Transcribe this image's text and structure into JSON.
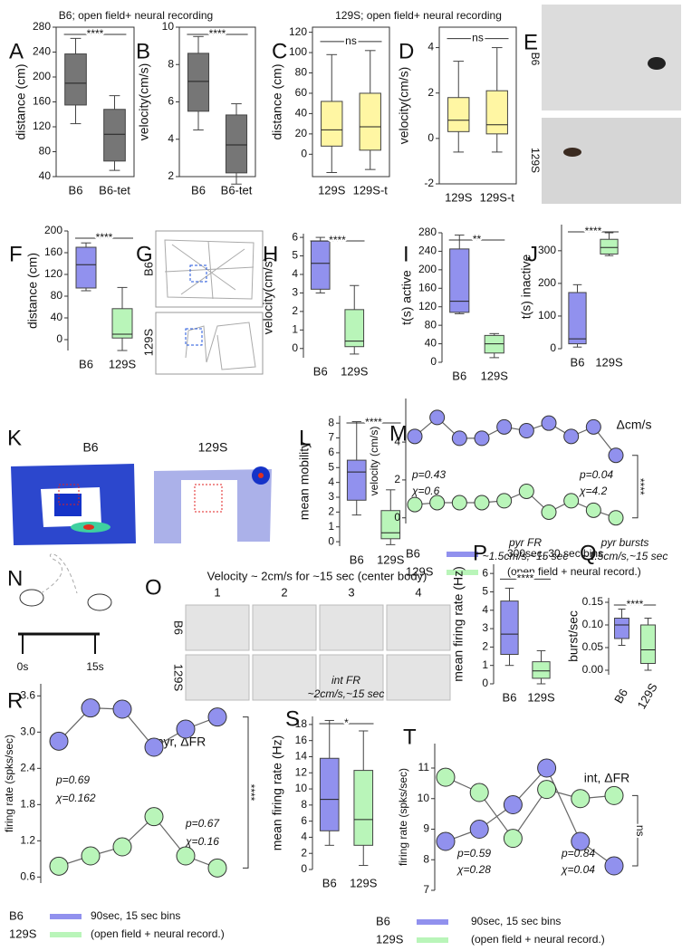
{
  "figure": {
    "headers": [
      "B6; open field+ neural recording",
      "129S; open field+ neural recording"
    ]
  },
  "panels": [
    {
      "panel": "E",
      "labels": [
        "B6",
        "129S"
      ]
    },
    {
      "panel": "G",
      "labels": [
        "B6",
        "129S"
      ]
    },
    {
      "panel": "K",
      "labels": [
        "B6",
        "129S"
      ]
    },
    {
      "panel": "N",
      "labels": [
        "0s",
        "15s"
      ]
    },
    {
      "panel": "O",
      "title": "Velocity ~ 2cm/s for ~15 sec (center body)",
      "columns": [
        "1",
        "2",
        "3",
        "4"
      ],
      "rows": [
        "B6",
        "129S"
      ]
    }
  ],
  "chart_data": [
    {
      "type": "box",
      "panel": "A",
      "ylabel": "distance (cm)",
      "categories": [
        "B6",
        "B6-tet"
      ],
      "colors": [
        "#767676",
        "#767676"
      ],
      "ylim": [
        40,
        280
      ],
      "yticks": [
        40,
        80,
        120,
        160,
        200,
        240,
        280
      ],
      "significance": "****",
      "boxes": [
        {
          "whislo": 125,
          "q1": 155,
          "med": 190,
          "q3": 237,
          "whishi": 262
        },
        {
          "whislo": 50,
          "q1": 65,
          "med": 108,
          "q3": 148,
          "whishi": 170
        }
      ]
    },
    {
      "type": "box",
      "panel": "B",
      "ylabel": "velocity(cm/s)",
      "categories": [
        "B6",
        "B6-tet"
      ],
      "colors": [
        "#767676",
        "#767676"
      ],
      "ylim": [
        2,
        10
      ],
      "yticks": [
        2,
        4,
        6,
        8,
        10
      ],
      "significance": "****",
      "boxes": [
        {
          "whislo": 4.5,
          "q1": 5.5,
          "med": 7.1,
          "q3": 8.6,
          "whishi": 9.5
        },
        {
          "whislo": 1.6,
          "q1": 2.2,
          "med": 3.7,
          "q3": 5.3,
          "whishi": 5.9
        }
      ]
    },
    {
      "type": "box",
      "panel": "C",
      "ylabel": "distance (cm)",
      "categories": [
        "129S",
        "129S-t"
      ],
      "colors": [
        "#fff6a3",
        "#fff6a3"
      ],
      "ylim": [
        -22,
        125
      ],
      "yticks": [
        0,
        20,
        40,
        60,
        80,
        100,
        120
      ],
      "significance": "ns",
      "boxes": [
        {
          "whislo": -18,
          "q1": 8,
          "med": 24,
          "q3": 52,
          "whishi": 98
        },
        {
          "whislo": -15,
          "q1": 4,
          "med": 27,
          "q3": 60,
          "whishi": 102
        }
      ]
    },
    {
      "type": "box",
      "panel": "D",
      "ylabel": "velocity(cm/s)",
      "categories": [
        "129S",
        "129S-t"
      ],
      "colors": [
        "#fff6a3",
        "#fff6a3"
      ],
      "ylim": [
        -2,
        4.9
      ],
      "yticks": [
        -2,
        0,
        2,
        4
      ],
      "significance": "ns",
      "boxes": [
        {
          "whislo": -0.6,
          "q1": 0.3,
          "med": 0.8,
          "q3": 1.8,
          "whishi": 3.4
        },
        {
          "whislo": -0.6,
          "q1": 0.2,
          "med": 0.6,
          "q3": 2.1,
          "whishi": 4.0
        }
      ]
    },
    {
      "type": "box",
      "panel": "F",
      "ylabel": "distance (cm)",
      "categories": [
        "B6",
        "129S"
      ],
      "colors": [
        "#9191ee",
        "#b9f5b9"
      ],
      "ylim": [
        -20,
        200
      ],
      "yticks": [
        0,
        40,
        80,
        120,
        160,
        200
      ],
      "significance": "****",
      "boxes": [
        {
          "whislo": 90,
          "q1": 95,
          "med": 138,
          "q3": 170,
          "whishi": 178
        },
        {
          "whislo": -20,
          "q1": 3,
          "med": 10,
          "q3": 57,
          "whishi": 96
        }
      ]
    },
    {
      "type": "box",
      "panel": "H",
      "ylabel": "velocity(cm/s)",
      "categories": [
        "B6",
        "129S"
      ],
      "colors": [
        "#9191ee",
        "#b9f5b9"
      ],
      "ylim": [
        -0.5,
        6.2
      ],
      "yticks": [
        0,
        1,
        2,
        3,
        4,
        5,
        6
      ],
      "significance": "****",
      "boxes": [
        {
          "whislo": 3.0,
          "q1": 3.2,
          "med": 4.6,
          "q3": 5.8,
          "whishi": 6.0
        },
        {
          "whislo": -0.3,
          "q1": 0.1,
          "med": 0.4,
          "q3": 2.1,
          "whishi": 3.4
        }
      ]
    },
    {
      "type": "box",
      "panel": "I",
      "ylabel": "t(s) active",
      "categories": [
        "B6",
        "129S"
      ],
      "colors": [
        "#9191ee",
        "#b9f5b9"
      ],
      "ylim": [
        0,
        280
      ],
      "yticks": [
        0,
        40,
        80,
        120,
        160,
        200,
        240,
        280
      ],
      "significance": "**",
      "boxes": [
        {
          "whislo": 105,
          "q1": 108,
          "med": 132,
          "q3": 245,
          "whishi": 275
        },
        {
          "whislo": 10,
          "q1": 20,
          "med": 40,
          "q3": 58,
          "whishi": 62
        }
      ]
    },
    {
      "type": "box",
      "panel": "J",
      "ylabel": "t(s) inactive",
      "categories": [
        "B6",
        "129S"
      ],
      "colors": [
        "#9191ee",
        "#b9f5b9"
      ],
      "ylim": [
        0,
        380
      ],
      "yticks": [
        0,
        100,
        200,
        300
      ],
      "significance": "****",
      "boxes": [
        {
          "whislo": 5,
          "q1": 15,
          "med": 30,
          "q3": 172,
          "whishi": 196
        },
        {
          "whislo": 285,
          "q1": 290,
          "med": 310,
          "q3": 335,
          "whishi": 355
        }
      ]
    },
    {
      "type": "box",
      "panel": "L",
      "ylabel": "mean mobility",
      "categories": [
        "B6",
        "129S"
      ],
      "colors": [
        "#9191ee",
        "#b9f5b9"
      ],
      "ylim": [
        -0.3,
        8.5
      ],
      "yticks": [
        0,
        1,
        2,
        3,
        4,
        5,
        6,
        7,
        8
      ],
      "significance": "****",
      "boxes": [
        {
          "whislo": 1.8,
          "q1": 2.8,
          "med": 4.7,
          "q3": 5.5,
          "whishi": 8.1
        },
        {
          "whislo": -0.2,
          "q1": 0.2,
          "med": 0.6,
          "q3": 2.1,
          "whishi": 3.5
        }
      ]
    },
    {
      "type": "line",
      "panel": "M",
      "title": "Δcm/s",
      "ylabel": "velocity (cm/s)",
      "ylim": [
        -0.3,
        6.3
      ],
      "yticks": [
        0,
        2,
        4
      ],
      "significance": "****",
      "series": [
        {
          "name": "B6",
          "color": "#9191ee",
          "values": [
            4.3,
            5.3,
            4.2,
            4.2,
            4.8,
            4.6,
            5.0,
            4.3,
            4.8,
            3.3
          ]
        },
        {
          "name": "129S",
          "color": "#b9f5b9",
          "values": [
            0.7,
            0.8,
            0.8,
            0.8,
            0.9,
            1.4,
            0.3,
            0.9,
            0.4,
            0.0
          ]
        }
      ],
      "annotations": [
        "p=0.43",
        "χ=0.6",
        "p=0.04",
        "χ=4.2"
      ],
      "notes": [
        "300sec, 30 sec bins",
        "(open field + neural record.)"
      ]
    },
    {
      "type": "box",
      "panel": "P",
      "title": "pyr FR",
      "subtitle": "~1.5cm/s,~15 sec",
      "ylabel": "mean firing rate (Hz)",
      "categories": [
        "B6",
        "129S"
      ],
      "colors": [
        "#9191ee",
        "#b9f5b9"
      ],
      "ylim": [
        0,
        6.5
      ],
      "yticks": [
        0,
        1,
        2,
        3,
        4,
        5,
        6
      ],
      "significance": "****",
      "boxes": [
        {
          "whislo": 1.0,
          "q1": 1.6,
          "med": 2.7,
          "q3": 4.5,
          "whishi": 5.2
        },
        {
          "whislo": 0.0,
          "q1": 0.3,
          "med": 0.7,
          "q3": 1.2,
          "whishi": 1.8
        }
      ]
    },
    {
      "type": "box",
      "panel": "Q",
      "title": "pyr bursts",
      "subtitle": "~1.5cm/s,~15 sec",
      "ylabel": "burst/sec",
      "categories": [
        "B6",
        "129S"
      ],
      "colors": [
        "#9191ee",
        "#b9f5b9"
      ],
      "ylim": [
        -0.01,
        0.16
      ],
      "yticks": [
        {
          "value": 0,
          "label": "0.00"
        },
        {
          "value": 0.05,
          "label": "0.05"
        },
        {
          "value": 0.1,
          "label": "0.10"
        },
        {
          "value": 0.15,
          "label": "0.15"
        }
      ],
      "significance": "****",
      "boxes": [
        {
          "whislo": 0.055,
          "q1": 0.07,
          "med": 0.1,
          "q3": 0.115,
          "whishi": 0.135
        },
        {
          "whislo": 0.0,
          "q1": 0.015,
          "med": 0.045,
          "q3": 0.1,
          "whishi": 0.115
        }
      ]
    },
    {
      "type": "line",
      "panel": "R",
      "title": "pyr, ΔFR",
      "ylabel": "firing rate (spks/sec)",
      "ylim": [
        0.5,
        3.8
      ],
      "yticks": [
        0.6,
        1.2,
        1.8,
        2.4,
        {
          "value": 3,
          "label": "3.0"
        },
        3.6
      ],
      "significance": "****",
      "series": [
        {
          "name": "B6",
          "color": "#9191ee",
          "values": [
            2.85,
            3.4,
            3.38,
            2.75,
            3.05,
            3.25
          ]
        },
        {
          "name": "129S",
          "color": "#b9f5b9",
          "values": [
            0.78,
            0.95,
            1.1,
            1.6,
            0.95,
            0.75
          ]
        }
      ],
      "annotations": [
        "p=0.69",
        "χ=0.162",
        "p=0.67",
        "χ=0.16"
      ],
      "notes": [
        "90sec, 15 sec bins",
        "(open field + neural record.)"
      ]
    },
    {
      "type": "box",
      "panel": "S",
      "title": "int FR",
      "subtitle": "~2cm/s,~15 sec",
      "ylabel": "mean firing rate (Hz)",
      "categories": [
        "B6",
        "129S"
      ],
      "colors": [
        "#9191ee",
        "#b9f5b9"
      ],
      "ylim": [
        0,
        19
      ],
      "yticks": [
        0,
        2,
        4,
        6,
        8,
        10,
        12,
        14,
        16,
        18
      ],
      "significance": "*",
      "boxes": [
        {
          "whislo": 3,
          "q1": 4.8,
          "med": 8.7,
          "q3": 13.8,
          "whishi": 18.5
        },
        {
          "whislo": 0.5,
          "q1": 3,
          "med": 6.2,
          "q3": 12.3,
          "whishi": 17.2
        }
      ]
    },
    {
      "type": "line",
      "panel": "T",
      "title": "int, ΔFR",
      "ylabel": "firing rate (spks/sec)",
      "ylim": [
        7,
        11.8
      ],
      "yticks": [
        7,
        8,
        9,
        10,
        11
      ],
      "significance": "ns",
      "series": [
        {
          "name": "B6",
          "color": "#9191ee",
          "values": [
            8.6,
            9.0,
            9.8,
            11.0,
            8.6,
            7.8
          ]
        },
        {
          "name": "129S",
          "color": "#b9f5b9",
          "values": [
            10.7,
            10.2,
            8.7,
            10.3,
            10.0,
            10.1
          ]
        }
      ],
      "annotations": [
        "p=0.59",
        "χ=0.28",
        "p=0.84",
        "χ=0.04"
      ],
      "notes": [
        "90sec, 15 sec bins",
        "(open field + neural record.)"
      ]
    }
  ]
}
